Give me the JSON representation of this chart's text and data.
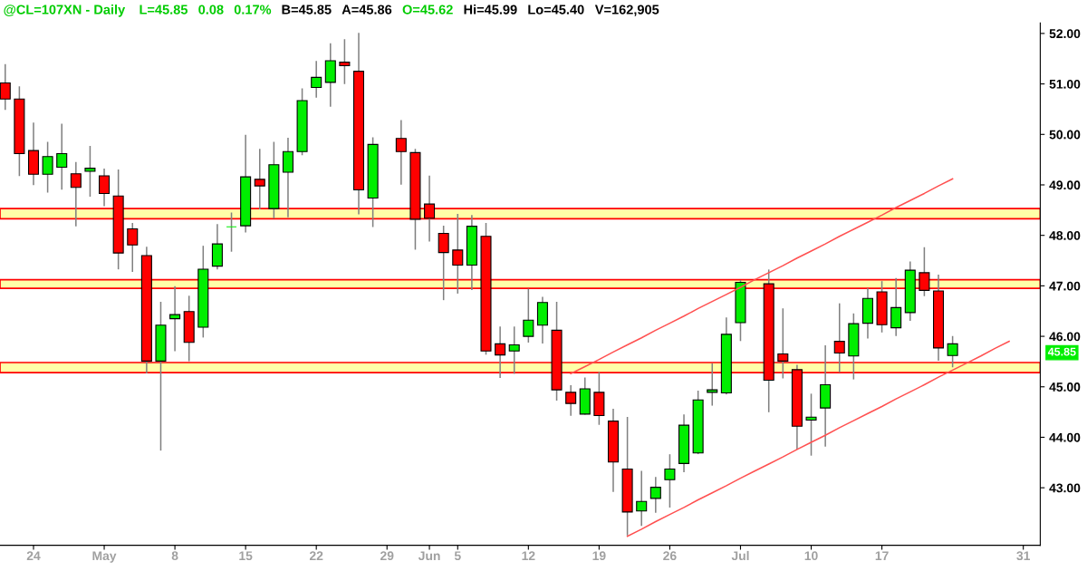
{
  "chart_data": {
    "type": "candlestick",
    "title": "@CL=107XN - Daily",
    "annotations": [
      "L=45.85",
      "0.08",
      "0.17%",
      "B=45.85",
      "A=45.86",
      "O=45.62",
      "Hi=45.99",
      "Lo=45.40",
      "V=162,905",
      "45.85"
    ],
    "categories": [
      null,
      null,
      "24",
      null,
      null,
      null,
      null,
      "May",
      null,
      null,
      null,
      null,
      "8",
      null,
      null,
      null,
      null,
      "15",
      null,
      null,
      null,
      null,
      "22",
      null,
      null,
      null,
      null,
      "29",
      null,
      null,
      "Jun",
      null,
      "5",
      null,
      null,
      null,
      null,
      "12",
      null,
      null,
      null,
      null,
      "19",
      null,
      null,
      null,
      null,
      "26",
      null,
      null,
      null,
      null,
      "Jul",
      null,
      null,
      null,
      null,
      "10",
      null,
      null,
      null,
      null,
      "17",
      null,
      null,
      null,
      null,
      null,
      null,
      null,
      null,
      null,
      "31"
    ],
    "ohlc": [
      [
        51.02,
        51.38,
        50.5,
        50.7
      ],
      [
        50.7,
        50.94,
        49.19,
        49.62
      ],
      [
        49.68,
        50.22,
        49.01,
        49.21
      ],
      [
        49.21,
        49.84,
        48.86,
        49.56
      ],
      [
        49.35,
        50.2,
        48.92,
        49.62
      ],
      [
        49.22,
        49.44,
        48.19,
        48.95
      ],
      [
        49.27,
        49.76,
        48.78,
        49.33
      ],
      [
        49.18,
        49.31,
        48.59,
        48.83
      ],
      [
        48.78,
        49.29,
        47.34,
        47.65
      ],
      [
        48.13,
        48.23,
        47.29,
        47.81
      ],
      [
        47.6,
        47.76,
        45.28,
        45.51
      ],
      [
        45.51,
        46.67,
        43.75,
        46.22
      ],
      [
        46.35,
        46.98,
        45.72,
        46.43
      ],
      [
        46.49,
        46.79,
        45.52,
        45.88
      ],
      [
        46.18,
        47.78,
        45.99,
        47.33
      ],
      [
        47.39,
        48.21,
        47.34,
        47.83
      ],
      [
        48.17,
        48.44,
        47.69,
        48.17
      ],
      [
        48.19,
        49.98,
        48.07,
        49.16
      ],
      [
        49.11,
        49.7,
        48.53,
        48.98
      ],
      [
        48.53,
        49.84,
        48.35,
        49.4
      ],
      [
        49.25,
        49.92,
        48.37,
        49.66
      ],
      [
        49.66,
        50.9,
        49.6,
        50.67
      ],
      [
        50.93,
        51.44,
        50.74,
        51.13
      ],
      [
        51.03,
        51.79,
        50.56,
        51.46
      ],
      [
        51.43,
        51.87,
        51.01,
        51.36
      ],
      [
        51.25,
        52.0,
        48.43,
        48.9
      ],
      [
        48.74,
        49.93,
        48.18,
        49.8
      ],
      null,
      [
        49.92,
        50.27,
        49.02,
        49.66
      ],
      [
        49.64,
        49.7,
        47.73,
        48.32
      ],
      [
        48.62,
        49.17,
        47.89,
        48.34
      ],
      [
        48.04,
        48.18,
        46.73,
        47.66
      ],
      [
        47.71,
        48.41,
        46.86,
        47.41
      ],
      [
        47.41,
        48.39,
        46.93,
        48.18
      ],
      [
        47.98,
        48.23,
        45.65,
        45.71
      ],
      [
        45.85,
        46.18,
        45.19,
        45.63
      ],
      [
        45.71,
        46.18,
        45.27,
        45.83
      ],
      [
        46.0,
        46.93,
        45.89,
        46.32
      ],
      [
        46.22,
        46.77,
        45.87,
        46.67
      ],
      [
        46.12,
        46.67,
        44.74,
        44.94
      ],
      [
        44.89,
        45.02,
        44.44,
        44.67
      ],
      [
        44.46,
        45.17,
        44.46,
        44.96
      ],
      [
        44.89,
        45.28,
        44.26,
        44.43
      ],
      [
        44.32,
        44.55,
        42.93,
        43.51
      ],
      [
        43.37,
        44.39,
        42.07,
        42.52
      ],
      [
        42.54,
        43.32,
        42.26,
        42.73
      ],
      [
        42.79,
        43.2,
        42.52,
        43.01
      ],
      [
        43.16,
        43.65,
        42.62,
        43.37
      ],
      [
        43.48,
        44.44,
        43.32,
        44.24
      ],
      [
        43.69,
        44.91,
        43.68,
        44.74
      ],
      [
        44.89,
        45.45,
        44.64,
        44.94
      ],
      [
        44.88,
        46.36,
        44.86,
        46.04
      ],
      [
        46.27,
        47.1,
        45.92,
        47.07
      ],
      null,
      [
        47.04,
        47.31,
        44.51,
        45.13
      ],
      [
        45.65,
        46.54,
        45.18,
        45.51
      ],
      [
        45.34,
        45.42,
        43.77,
        44.22
      ],
      [
        44.34,
        44.85,
        43.65,
        44.4
      ],
      [
        44.58,
        45.81,
        43.83,
        45.04
      ],
      [
        45.9,
        46.64,
        45.3,
        45.67
      ],
      [
        45.61,
        46.44,
        45.16,
        46.25
      ],
      [
        46.26,
        46.94,
        45.97,
        46.75
      ],
      [
        46.88,
        47.08,
        46.09,
        46.23
      ],
      [
        46.17,
        47.14,
        46.02,
        46.57
      ],
      [
        46.47,
        47.47,
        46.32,
        47.31
      ],
      [
        47.26,
        47.75,
        46.81,
        46.91
      ],
      [
        46.9,
        47.21,
        45.53,
        45.77
      ],
      [
        45.62,
        45.99,
        45.4,
        45.85
      ],
      null,
      null,
      null,
      null,
      null
    ],
    "series": [
      {
        "type": "line",
        "values": [
          null,
          null,
          null,
          null,
          null,
          null,
          null,
          null,
          null,
          null,
          null,
          null,
          null,
          null,
          null,
          null,
          null,
          null,
          null,
          null,
          null,
          null,
          null,
          null,
          null,
          null,
          null,
          null,
          null,
          null,
          null,
          null,
          null,
          null,
          null,
          null,
          null,
          null,
          null,
          null,
          45.26,
          45.4,
          45.54,
          45.69,
          45.83,
          45.97,
          46.12,
          46.26,
          46.4,
          46.55,
          46.69,
          46.83,
          46.97,
          47.12,
          47.26,
          47.4,
          47.55,
          47.69,
          47.83,
          47.98,
          48.12,
          48.26,
          48.4,
          48.55,
          48.69,
          48.83,
          48.98,
          49.12,
          null,
          null,
          null,
          null,
          null
        ],
        "color": "#ff5050"
      },
      {
        "type": "line",
        "values": [
          null,
          null,
          null,
          null,
          null,
          null,
          null,
          null,
          null,
          null,
          null,
          null,
          null,
          null,
          null,
          null,
          null,
          null,
          null,
          null,
          null,
          null,
          null,
          null,
          null,
          null,
          null,
          null,
          null,
          null,
          null,
          null,
          null,
          null,
          null,
          null,
          null,
          null,
          null,
          null,
          null,
          null,
          null,
          null,
          42.04,
          42.18,
          42.33,
          42.47,
          42.61,
          42.76,
          42.9,
          43.04,
          43.19,
          43.33,
          43.47,
          43.61,
          43.76,
          43.9,
          44.04,
          44.19,
          44.33,
          44.47,
          44.61,
          44.76,
          44.9,
          45.04,
          45.19,
          45.33,
          45.47,
          45.61,
          45.76,
          45.9,
          null
        ],
        "color": "#ff5050"
      }
    ],
    "bands": [
      {
        "axis": "y",
        "from": 48.33,
        "to": 48.53,
        "color": "#ffffa8"
      },
      {
        "axis": "y",
        "from": 46.95,
        "to": 47.12,
        "color": "#ffffa8"
      },
      {
        "axis": "y",
        "from": 45.28,
        "to": 45.48,
        "color": "#ffffa8"
      }
    ],
    "ylim": [
      41.86,
      52.21
    ],
    "yticks": [
      {
        "value": 43,
        "label": "43.00"
      },
      {
        "value": 44,
        "label": "44.00"
      },
      {
        "value": 45,
        "label": "45.00"
      },
      {
        "value": 46,
        "label": "46.00"
      },
      {
        "value": 47,
        "label": "47.00"
      },
      {
        "value": 48,
        "label": "48.00"
      },
      {
        "value": 49,
        "label": "49.00"
      },
      {
        "value": 50,
        "label": "50.00"
      },
      {
        "value": 51,
        "label": "51.00"
      },
      {
        "value": 52,
        "label": "52.00"
      }
    ],
    "grid": false,
    "legend": false
  }
}
